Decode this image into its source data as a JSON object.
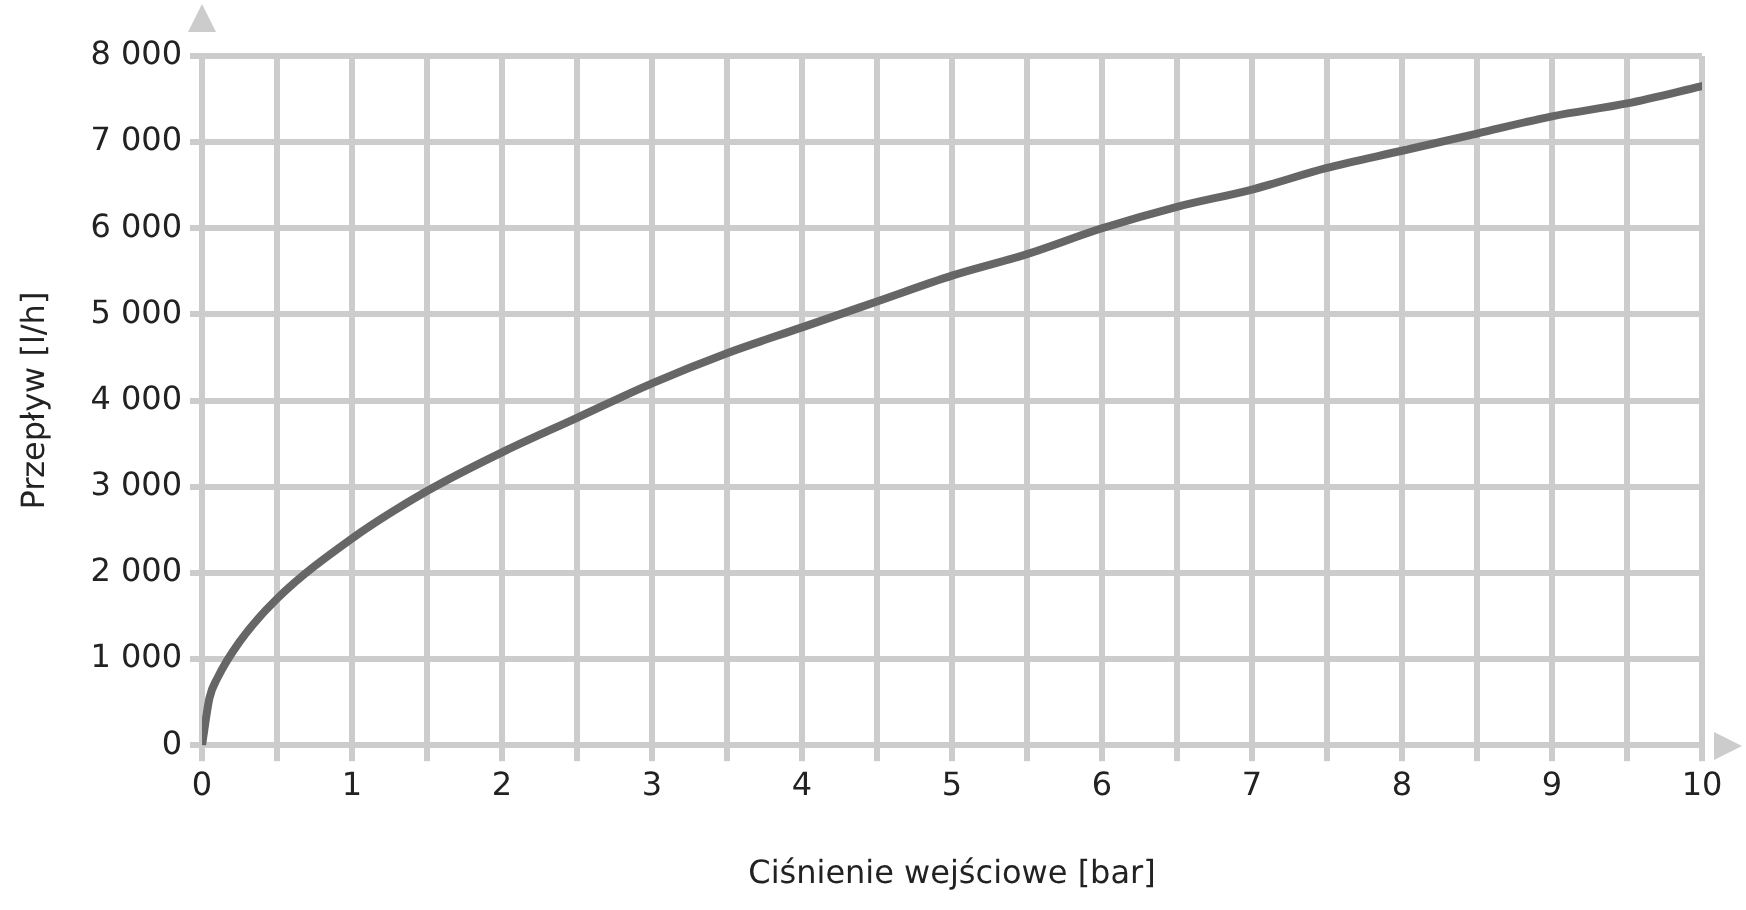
{
  "chart_data": {
    "type": "line",
    "xlabel": "Ciśnienie wejściowe [bar]",
    "ylabel": "Przepływ [l/h]",
    "series": [
      {
        "color": "#666666",
        "x": [
          0,
          0.05,
          0.1,
          0.25,
          0.5,
          1,
          1.5,
          2,
          2.5,
          3,
          3.5,
          4,
          4.5,
          5,
          5.5,
          6,
          6.5,
          7,
          7.5,
          8,
          8.5,
          9,
          9.5,
          10
        ],
        "values": [
          0,
          550,
          770,
          1200,
          1700,
          2400,
          2950,
          3400,
          3800,
          4200,
          4550,
          4850,
          5150,
          5450,
          5700,
          6000,
          6250,
          6450,
          6700,
          6900,
          7100,
          7300,
          7450,
          7650
        ]
      }
    ],
    "xlim": [
      0,
      10
    ],
    "xticks": [
      0,
      {
        "value": 0.5,
        "label": null
      },
      1,
      {
        "value": 1.5,
        "label": null
      },
      2,
      {
        "value": 2.5,
        "label": null
      },
      3,
      {
        "value": 3.5,
        "label": null
      },
      4,
      {
        "value": 4.5,
        "label": null
      },
      5,
      {
        "value": 5.5,
        "label": null
      },
      6,
      {
        "value": 6.5,
        "label": null
      },
      7,
      {
        "value": 7.5,
        "label": null
      },
      8,
      {
        "value": 8.5,
        "label": null
      },
      9,
      {
        "value": 9.5,
        "label": null
      },
      10
    ],
    "ylim": [
      0,
      8000
    ],
    "yticks": [
      0,
      {
        "value": 1000,
        "label": "1 000"
      },
      {
        "value": 2000,
        "label": "2 000"
      },
      {
        "value": 3000,
        "label": "3 000"
      },
      {
        "value": 4000,
        "label": "4 000"
      },
      {
        "value": 5000,
        "label": "5 000"
      },
      {
        "value": 6000,
        "label": "6 000"
      },
      {
        "value": 7000,
        "label": "7 000"
      },
      {
        "value": 8000,
        "label": "8 000"
      }
    ],
    "grid": true,
    "legend": false,
    "marker": "none",
    "line_style": "solid"
  }
}
